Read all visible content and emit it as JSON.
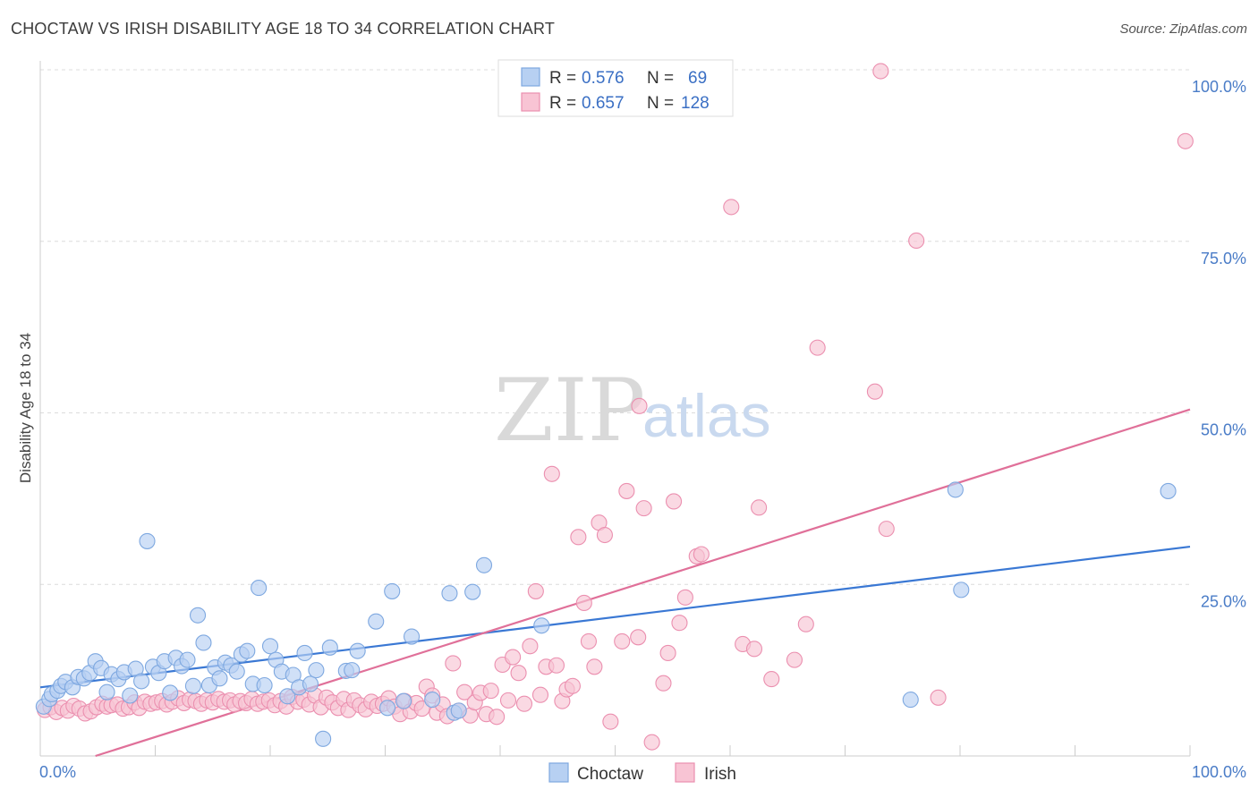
{
  "header": {
    "title": "CHOCTAW VS IRISH DISABILITY AGE 18 TO 34 CORRELATION CHART",
    "source": "Source: ZipAtlas.com"
  },
  "watermark": {
    "zip": "ZIP",
    "atlas": "atlas"
  },
  "legend_top": {
    "rows": [
      {
        "r_label": "R =",
        "r_value": "0.576",
        "n_label": "N =",
        "n_value": "69"
      },
      {
        "r_label": "R =",
        "r_value": "0.657",
        "n_label": "N =",
        "n_value": "128"
      }
    ]
  },
  "colors": {
    "choctaw_fill": "#b7d0f2",
    "choctaw_stroke": "#7ea8e0",
    "choctaw_line": "#3a78d4",
    "irish_fill": "#f8c4d4",
    "irish_stroke": "#eb8faf",
    "irish_line": "#e07099"
  },
  "chart_data": {
    "type": "scatter",
    "title": "CHOCTAW VS IRISH DISABILITY AGE 18 TO 34 CORRELATION CHART",
    "xlabel": "",
    "ylabel": "Disability Age 18 to 34",
    "xlim": [
      0,
      100
    ],
    "ylim": [
      0,
      100
    ],
    "x_tick_labels": [
      "0.0%",
      "100.0%"
    ],
    "y_ticks": [
      25,
      50,
      75,
      100
    ],
    "y_tick_labels": [
      "25.0%",
      "50.0%",
      "75.0%",
      "100.0%"
    ],
    "grid": true,
    "legend_placement": "bottom-center",
    "series": [
      {
        "name": "Choctaw",
        "r": 0.576,
        "n": 69,
        "trend": {
          "x": [
            0,
            100
          ],
          "y": [
            10.0,
            30.5
          ]
        },
        "points": [
          [
            0.3,
            7.2
          ],
          [
            0.8,
            8.3
          ],
          [
            1.0,
            9.0
          ],
          [
            1.5,
            9.5
          ],
          [
            1.8,
            10.2
          ],
          [
            2.2,
            10.8
          ],
          [
            2.8,
            10.0
          ],
          [
            3.3,
            11.5
          ],
          [
            3.8,
            11.3
          ],
          [
            4.3,
            12.1
          ],
          [
            4.8,
            13.8
          ],
          [
            5.3,
            12.8
          ],
          [
            5.8,
            9.3
          ],
          [
            6.2,
            11.9
          ],
          [
            6.8,
            11.2
          ],
          [
            7.3,
            12.2
          ],
          [
            7.8,
            8.8
          ],
          [
            8.3,
            12.7
          ],
          [
            8.8,
            10.9
          ],
          [
            9.3,
            31.3
          ],
          [
            9.8,
            13.0
          ],
          [
            10.3,
            12.1
          ],
          [
            10.8,
            13.8
          ],
          [
            11.3,
            9.2
          ],
          [
            11.8,
            14.3
          ],
          [
            12.3,
            13.1
          ],
          [
            12.8,
            14.0
          ],
          [
            13.3,
            10.2
          ],
          [
            13.7,
            20.5
          ],
          [
            14.2,
            16.5
          ],
          [
            14.7,
            10.3
          ],
          [
            15.2,
            12.9
          ],
          [
            15.6,
            11.3
          ],
          [
            16.1,
            13.6
          ],
          [
            16.6,
            13.2
          ],
          [
            17.1,
            12.3
          ],
          [
            17.5,
            14.8
          ],
          [
            18.0,
            15.3
          ],
          [
            18.5,
            10.5
          ],
          [
            19.0,
            24.5
          ],
          [
            19.5,
            10.3
          ],
          [
            20.0,
            16.0
          ],
          [
            20.5,
            14.0
          ],
          [
            21.0,
            12.3
          ],
          [
            21.5,
            8.7
          ],
          [
            22.0,
            11.8
          ],
          [
            22.5,
            10.0
          ],
          [
            23.0,
            15.0
          ],
          [
            23.5,
            10.5
          ],
          [
            24.0,
            12.5
          ],
          [
            24.6,
            2.5
          ],
          [
            25.2,
            15.8
          ],
          [
            26.6,
            12.4
          ],
          [
            27.1,
            12.5
          ],
          [
            27.6,
            15.3
          ],
          [
            29.2,
            19.6
          ],
          [
            30.2,
            7.0
          ],
          [
            30.6,
            24.0
          ],
          [
            31.6,
            8.0
          ],
          [
            32.3,
            17.4
          ],
          [
            34.1,
            8.2
          ],
          [
            35.6,
            23.7
          ],
          [
            36.0,
            6.3
          ],
          [
            36.4,
            6.6
          ],
          [
            37.6,
            23.9
          ],
          [
            38.6,
            27.8
          ],
          [
            43.6,
            19.0
          ],
          [
            75.7,
            8.2
          ],
          [
            79.6,
            38.8
          ],
          [
            80.1,
            24.2
          ],
          [
            98.1,
            38.6
          ]
        ]
      },
      {
        "name": "Irish",
        "r": 0.657,
        "n": 128,
        "trend": {
          "x": [
            4.8,
            100
          ],
          "y": [
            0,
            50.5
          ]
        },
        "points": [
          [
            0.4,
            6.7
          ],
          [
            0.9,
            7.1
          ],
          [
            1.4,
            6.4
          ],
          [
            1.9,
            7.0
          ],
          [
            2.4,
            6.6
          ],
          [
            2.9,
            7.3
          ],
          [
            3.4,
            6.9
          ],
          [
            3.9,
            6.2
          ],
          [
            4.4,
            6.5
          ],
          [
            4.9,
            7.1
          ],
          [
            5.4,
            7.6
          ],
          [
            5.8,
            7.2
          ],
          [
            6.2,
            7.4
          ],
          [
            6.7,
            7.5
          ],
          [
            7.2,
            6.9
          ],
          [
            7.7,
            7.1
          ],
          [
            8.2,
            7.8
          ],
          [
            8.6,
            7.0
          ],
          [
            9.1,
            7.9
          ],
          [
            9.6,
            7.6
          ],
          [
            10.1,
            7.8
          ],
          [
            10.6,
            8.0
          ],
          [
            11.0,
            7.5
          ],
          [
            11.5,
            7.9
          ],
          [
            12.0,
            8.4
          ],
          [
            12.5,
            7.7
          ],
          [
            13.0,
            8.2
          ],
          [
            13.5,
            8.0
          ],
          [
            14.0,
            7.6
          ],
          [
            14.5,
            8.1
          ],
          [
            15.0,
            7.8
          ],
          [
            15.5,
            8.3
          ],
          [
            16.0,
            7.9
          ],
          [
            16.5,
            8.1
          ],
          [
            16.9,
            7.5
          ],
          [
            17.4,
            8.0
          ],
          [
            17.9,
            7.7
          ],
          [
            18.4,
            8.3
          ],
          [
            18.9,
            7.6
          ],
          [
            19.4,
            7.9
          ],
          [
            19.9,
            8.1
          ],
          [
            20.4,
            7.4
          ],
          [
            20.9,
            8.0
          ],
          [
            21.4,
            7.2
          ],
          [
            21.9,
            8.6
          ],
          [
            22.4,
            7.9
          ],
          [
            22.9,
            8.2
          ],
          [
            23.4,
            7.5
          ],
          [
            23.9,
            8.8
          ],
          [
            24.4,
            7.1
          ],
          [
            24.9,
            8.5
          ],
          [
            25.4,
            7.8
          ],
          [
            25.9,
            7.0
          ],
          [
            26.4,
            8.3
          ],
          [
            26.8,
            6.7
          ],
          [
            27.3,
            8.1
          ],
          [
            27.8,
            7.4
          ],
          [
            28.3,
            6.8
          ],
          [
            28.8,
            7.9
          ],
          [
            29.3,
            7.3
          ],
          [
            29.8,
            7.6
          ],
          [
            30.3,
            8.4
          ],
          [
            30.8,
            7.2
          ],
          [
            31.3,
            6.1
          ],
          [
            31.7,
            8.0
          ],
          [
            32.2,
            6.5
          ],
          [
            32.7,
            7.7
          ],
          [
            33.2,
            6.9
          ],
          [
            33.6,
            10.1
          ],
          [
            34.1,
            8.8
          ],
          [
            34.5,
            6.3
          ],
          [
            35.0,
            7.5
          ],
          [
            35.4,
            5.8
          ],
          [
            35.9,
            13.5
          ],
          [
            36.4,
            6.6
          ],
          [
            36.9,
            9.3
          ],
          [
            37.4,
            5.9
          ],
          [
            37.8,
            7.8
          ],
          [
            38.3,
            9.2
          ],
          [
            38.8,
            6.1
          ],
          [
            39.2,
            9.5
          ],
          [
            39.7,
            5.7
          ],
          [
            40.2,
            13.3
          ],
          [
            40.7,
            8.1
          ],
          [
            41.1,
            14.4
          ],
          [
            41.6,
            12.1
          ],
          [
            42.1,
            7.6
          ],
          [
            42.6,
            16.0
          ],
          [
            43.1,
            24.0
          ],
          [
            43.5,
            8.9
          ],
          [
            44.0,
            13.0
          ],
          [
            44.5,
            41.1
          ],
          [
            44.9,
            13.2
          ],
          [
            45.4,
            8.0
          ],
          [
            45.8,
            9.7
          ],
          [
            46.3,
            10.2
          ],
          [
            46.8,
            31.9
          ],
          [
            47.3,
            22.3
          ],
          [
            47.7,
            16.7
          ],
          [
            48.2,
            13.0
          ],
          [
            48.6,
            34.0
          ],
          [
            49.1,
            32.2
          ],
          [
            49.6,
            5.0
          ],
          [
            50.6,
            16.7
          ],
          [
            51.0,
            38.6
          ],
          [
            52.0,
            17.3
          ],
          [
            52.5,
            36.1
          ],
          [
            53.2,
            2.0
          ],
          [
            54.2,
            10.6
          ],
          [
            54.6,
            15.0
          ],
          [
            55.1,
            37.1
          ],
          [
            55.6,
            19.4
          ],
          [
            56.1,
            23.1
          ],
          [
            57.1,
            29.1
          ],
          [
            57.5,
            29.4
          ],
          [
            60.1,
            80.0
          ],
          [
            61.1,
            16.3
          ],
          [
            62.1,
            15.6
          ],
          [
            62.5,
            36.2
          ],
          [
            63.6,
            11.2
          ],
          [
            65.6,
            14.0
          ],
          [
            66.6,
            19.2
          ],
          [
            67.6,
            59.5
          ],
          [
            72.6,
            53.1
          ],
          [
            73.1,
            99.8
          ],
          [
            73.6,
            33.1
          ],
          [
            78.1,
            8.5
          ],
          [
            76.2,
            75.1
          ],
          [
            52.1,
            51.0
          ],
          [
            99.6,
            89.6
          ]
        ]
      }
    ]
  }
}
